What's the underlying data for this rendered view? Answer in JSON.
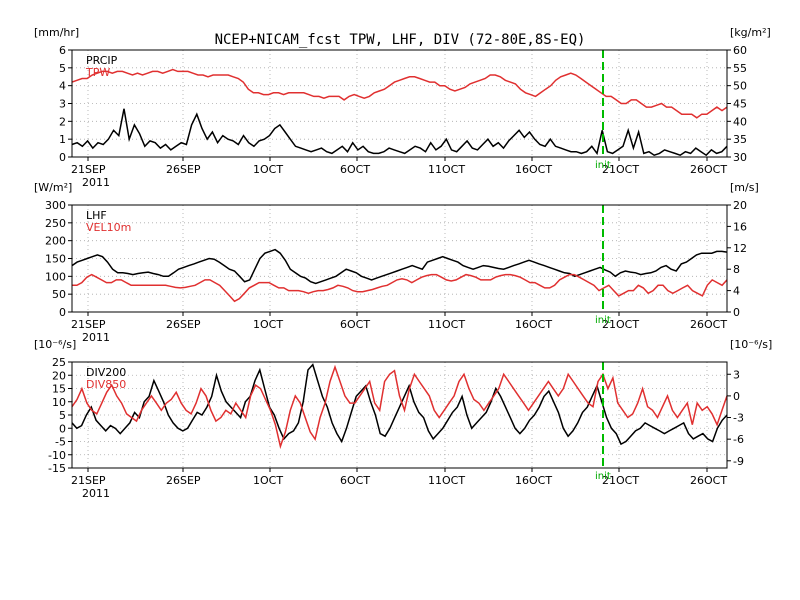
{
  "title": "NCEP+NICAM_fcst TPW, LHF, DIV (72-80E,8S-EQ)",
  "colors": {
    "black": "#000000",
    "red": "#e03030",
    "init": "#00bb00"
  },
  "x_ticks": [
    "21SEP",
    "26SEP",
    "1OCT",
    "6OCT",
    "11OCT",
    "16OCT",
    "21OCT",
    "26OCT"
  ],
  "x_year": "2011",
  "init_label": "init",
  "chart_data": [
    {
      "type": "line",
      "left_unit": "[mm/hr]",
      "right_unit": "[kg/m²]",
      "y_left": {
        "ticks": [
          "0",
          "1",
          "2",
          "3",
          "4",
          "5",
          "6"
        ],
        "range": [
          0,
          6
        ]
      },
      "y_right": {
        "ticks": [
          "30",
          "35",
          "40",
          "45",
          "50",
          "55",
          "60"
        ],
        "range": [
          30,
          60
        ]
      },
      "grid": true,
      "series": [
        {
          "name": "PRCIP",
          "axis": "left",
          "color": "black",
          "values": [
            0.7,
            0.8,
            0.6,
            0.9,
            0.5,
            0.8,
            0.7,
            1.0,
            1.5,
            1.2,
            2.7,
            1.0,
            1.8,
            1.3,
            0.6,
            0.9,
            0.8,
            0.5,
            0.7,
            0.4,
            0.6,
            0.8,
            0.7,
            1.8,
            2.4,
            1.6,
            1.0,
            1.4,
            0.8,
            1.2,
            1.0,
            0.9,
            0.7,
            1.2,
            0.8,
            0.6,
            0.9,
            1.0,
            1.2,
            1.6,
            1.8,
            1.4,
            1.0,
            0.6,
            0.5,
            0.4,
            0.3,
            0.4,
            0.5,
            0.3,
            0.2,
            0.4,
            0.6,
            0.3,
            0.8,
            0.4,
            0.6,
            0.3,
            0.2,
            0.2,
            0.3,
            0.5,
            0.4,
            0.3,
            0.2,
            0.4,
            0.6,
            0.5,
            0.3,
            0.8,
            0.4,
            0.6,
            1.0,
            0.4,
            0.3,
            0.6,
            0.9,
            0.5,
            0.4,
            0.7,
            1.0,
            0.6,
            0.8,
            0.5,
            0.9,
            1.2,
            1.5,
            1.1,
            1.4,
            1.0,
            0.7,
            0.6,
            1.0,
            0.6,
            0.5,
            0.4,
            0.3,
            0.3,
            0.2,
            0.3,
            0.6,
            0.2,
            1.5,
            0.3,
            0.2,
            0.4,
            0.6,
            1.5,
            0.5,
            1.4,
            0.2,
            0.3,
            0.1,
            0.2,
            0.4,
            0.3,
            0.2,
            0.1,
            0.3,
            0.2,
            0.5,
            0.3,
            0.1,
            0.4,
            0.2,
            0.3,
            0.6
          ],
          "gaps": []
        },
        {
          "name": "TPW",
          "axis": "right",
          "color": "red",
          "values": [
            51,
            51.5,
            52,
            52,
            53,
            53.5,
            54,
            54,
            53.5,
            54,
            54,
            53.5,
            53,
            53.5,
            53,
            53.5,
            54,
            54,
            53.5,
            54,
            54.5,
            54,
            54,
            54,
            53.5,
            53,
            53,
            52.5,
            53,
            53,
            53,
            53,
            52.5,
            52,
            51,
            49,
            48,
            48,
            47.5,
            47.5,
            48,
            48,
            47.5,
            48,
            48,
            48,
            48,
            47.5,
            47,
            47,
            46.5,
            47,
            47,
            47,
            46,
            47,
            47.5,
            47,
            46.5,
            47,
            48,
            48.5,
            49,
            50,
            51,
            51.5,
            52,
            52.5,
            52.5,
            52,
            51.5,
            51,
            51,
            50,
            50,
            49,
            48.5,
            49,
            49.5,
            50.5,
            51,
            51.5,
            52,
            53,
            53,
            52.5,
            51.5,
            51,
            50.5,
            49,
            48,
            47.5,
            47,
            48,
            49,
            50,
            51.5,
            52.5,
            53,
            53.5,
            53,
            52,
            51,
            50,
            49,
            48,
            47,
            47,
            46,
            45,
            45,
            46,
            46,
            45,
            44,
            44,
            44.5,
            45,
            44,
            44,
            43,
            42,
            42,
            42,
            41,
            42,
            42,
            43,
            44,
            43,
            44
          ],
          "gaps": []
        }
      ]
    },
    {
      "type": "line",
      "left_unit": "[W/m²]",
      "right_unit": "[m/s]",
      "y_left": {
        "ticks": [
          "0",
          "50",
          "100",
          "150",
          "200",
          "250",
          "300"
        ],
        "range": [
          0,
          300
        ]
      },
      "y_right": {
        "ticks": [
          "0",
          "4",
          "8",
          "12",
          "16",
          "20"
        ],
        "range": [
          0,
          20
        ]
      },
      "grid": true,
      "series": [
        {
          "name": "LHF",
          "axis": "left",
          "color": "black",
          "values": [
            130,
            140,
            145,
            150,
            155,
            160,
            155,
            140,
            120,
            110,
            110,
            108,
            105,
            108,
            110,
            112,
            108,
            105,
            100,
            100,
            110,
            120,
            125,
            130,
            135,
            140,
            145,
            150,
            148,
            140,
            130,
            120,
            115,
            100,
            85,
            90,
            120,
            150,
            165,
            170,
            175,
            165,
            145,
            120,
            110,
            100,
            95,
            85,
            80,
            85,
            90,
            95,
            100,
            110,
            120,
            115,
            110,
            100,
            95,
            90,
            95,
            100,
            105,
            110,
            115,
            120,
            125,
            130,
            125,
            120,
            140,
            145,
            150,
            155,
            150,
            145,
            140,
            130,
            125,
            120,
            125,
            130,
            128,
            125,
            122,
            120,
            125,
            130,
            135,
            140,
            145,
            140,
            135,
            130,
            125,
            120,
            115,
            110,
            108,
            100,
            105,
            110,
            115,
            120,
            125,
            118,
            112,
            100,
            110,
            115,
            112,
            110,
            105,
            108,
            110,
            115,
            125,
            130,
            120,
            115,
            135,
            140,
            150,
            160,
            165,
            165,
            165,
            170,
            170,
            168
          ],
          "gaps": []
        },
        {
          "name": "VEL10m",
          "axis": "right",
          "color": "red",
          "values": [
            5,
            5,
            5.5,
            6.5,
            7,
            6.5,
            6,
            5.5,
            5.5,
            6,
            6,
            5.5,
            5,
            5,
            5,
            5,
            5,
            5,
            5,
            5,
            4.8,
            4.6,
            4.5,
            4.6,
            4.8,
            5,
            5.5,
            6,
            6,
            5.5,
            5,
            4,
            3,
            2,
            2.5,
            3.5,
            4.5,
            5,
            5.5,
            5.5,
            5.5,
            5,
            4.5,
            4.5,
            4,
            4,
            4,
            3.8,
            3.5,
            3.8,
            4,
            4,
            4.2,
            4.5,
            5,
            4.8,
            4.5,
            4,
            3.8,
            3.8,
            4,
            4.2,
            4.5,
            4.8,
            5,
            5.5,
            6,
            6.2,
            6,
            5.5,
            6,
            6.5,
            6.8,
            7,
            7,
            6.5,
            6,
            5.8,
            6,
            6.5,
            7,
            6.8,
            6.5,
            6,
            6,
            6,
            6.5,
            6.8,
            7,
            7,
            6.8,
            6.5,
            6,
            5.5,
            5.5,
            5,
            4.5,
            4.5,
            5,
            6,
            6.5,
            7,
            7,
            6.5,
            6,
            5.5,
            5,
            4,
            4.5,
            5,
            4,
            3,
            3.5,
            4,
            4,
            5,
            4.5,
            3.5,
            4,
            5,
            5,
            4,
            3.5,
            4,
            4.5,
            5,
            4,
            3.5,
            3,
            5,
            6,
            5.5,
            5,
            6
          ],
          "gaps": []
        }
      ]
    },
    {
      "type": "line",
      "left_unit": "[10⁻⁶/s]",
      "right_unit": "[10⁻⁶/s]",
      "y_left": {
        "ticks": [
          "-15",
          "-10",
          "-5",
          "0",
          "5",
          "10",
          "15",
          "20",
          "25"
        ],
        "range": [
          -15,
          25
        ]
      },
      "y_right": {
        "ticks": [
          "-9",
          "-6",
          "-3",
          "0",
          "3"
        ],
        "range": [
          -10,
          4.7
        ]
      },
      "grid": true,
      "series": [
        {
          "name": "DIV200",
          "axis": "left",
          "color": "black",
          "values": [
            2,
            0,
            1,
            5,
            8,
            3,
            1,
            -1,
            1,
            0,
            -2,
            0,
            2,
            6,
            4,
            10,
            12,
            18,
            14,
            10,
            5,
            2,
            0,
            -1,
            0,
            3,
            6,
            5,
            8,
            12,
            20,
            14,
            10,
            8,
            6,
            4,
            10,
            12,
            18,
            22,
            15,
            8,
            5,
            0,
            -4,
            -2,
            -1,
            2,
            10,
            22,
            24,
            18,
            12,
            8,
            2,
            -2,
            -5,
            0,
            6,
            12,
            14,
            16,
            10,
            5,
            -2,
            -3,
            0,
            4,
            8,
            12,
            16,
            10,
            6,
            4,
            -1,
            -4,
            -2,
            0,
            3,
            6,
            8,
            12,
            5,
            0,
            2,
            4,
            6,
            10,
            15,
            12,
            8,
            4,
            0,
            -2,
            0,
            3,
            5,
            8,
            12,
            14,
            10,
            6,
            0,
            -3,
            -1,
            2,
            6,
            8,
            12,
            16,
            10,
            4,
            0,
            -2,
            -6,
            -5,
            -3,
            -1,
            0,
            2,
            1,
            0,
            -1,
            -2,
            -1,
            0,
            1,
            2,
            -2,
            -4,
            -3,
            -2,
            -4,
            -5,
            0,
            3,
            5
          ],
          "gaps": []
        },
        {
          "name": "DIV850",
          "axis": "right",
          "color": "red",
          "values": [
            -1.5,
            -0.5,
            1,
            -1,
            -2,
            -2.5,
            -1,
            0.5,
            1.5,
            0,
            -1,
            -2.5,
            -3,
            -3.5,
            -2,
            -1,
            0,
            -1,
            -2,
            -1,
            -0.5,
            0.5,
            -1,
            -2,
            -2.5,
            -1,
            1,
            0,
            -2,
            -3.5,
            -3,
            -2,
            -2.5,
            -1,
            -2,
            -3,
            0,
            1.5,
            1,
            -0.5,
            -2,
            -4,
            -7,
            -5,
            -2,
            0,
            -1,
            -3,
            -5,
            -6,
            -3,
            -1,
            2,
            4,
            2,
            0,
            -1,
            -1,
            0,
            1,
            2,
            -1,
            -2,
            2,
            3,
            3.5,
            0,
            -2,
            1,
            3,
            2,
            1,
            0,
            -2,
            -3,
            -2,
            -1,
            0,
            2,
            3,
            1,
            -0.5,
            -1,
            -2,
            -1,
            0,
            1,
            3,
            2,
            1,
            0,
            -1,
            -2,
            -1,
            0,
            1,
            2,
            1,
            0,
            1,
            3,
            2,
            1,
            0,
            -1,
            -1.5,
            2,
            3,
            1,
            2.5,
            -1,
            -2,
            -3,
            -2.5,
            -1,
            1,
            -1.5,
            -2,
            -3,
            -1.5,
            0,
            -2,
            -3,
            -2,
            -1,
            -4,
            -1,
            -2,
            -1.5,
            -2.5,
            -4,
            -2,
            0
          ],
          "gaps": []
        }
      ]
    }
  ]
}
